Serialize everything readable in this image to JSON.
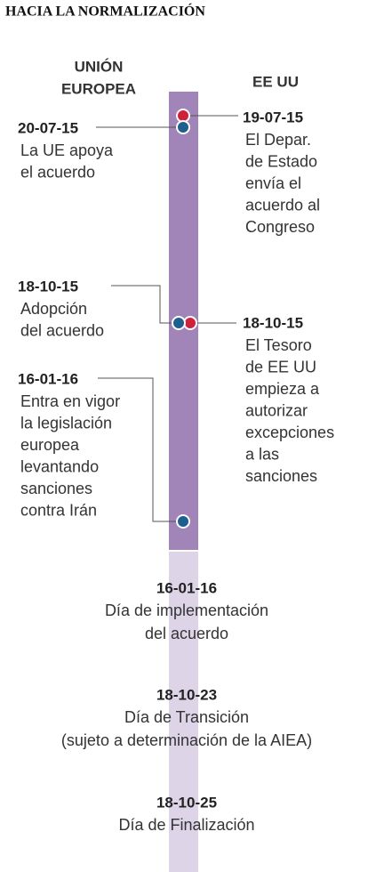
{
  "title": "HACIA LA NORMALIZACIÓN",
  "headers": {
    "eu": [
      "UNIÓN",
      "EUROPEA"
    ],
    "us": "EE UU"
  },
  "eu_events": [
    {
      "date": "20-07-15",
      "lines": [
        "La UE apoya",
        "el acuerdo"
      ]
    },
    {
      "date": "18-10-15",
      "lines": [
        "Adopción",
        "del acuerdo"
      ]
    },
    {
      "date": "16-01-16",
      "lines": [
        "Entra en vigor",
        "la legislación",
        "europea",
        "levantando",
        "sanciones",
        "contra Irán"
      ]
    }
  ],
  "us_events": [
    {
      "date": "19-07-15",
      "lines": [
        "El Depar.",
        "de Estado",
        "envía el",
        "acuerdo al",
        "Congreso"
      ]
    },
    {
      "date": "18-10-15",
      "lines": [
        "El Tesoro",
        "de EE UU",
        "empieza a",
        "autorizar",
        "excepciones",
        "a las",
        "sanciones"
      ]
    }
  ],
  "milestones": [
    {
      "date": "16-01-16",
      "lines": [
        "Día de implementación",
        "del acuerdo"
      ]
    },
    {
      "date": "18-10-23",
      "lines": [
        "Día de Transición",
        "(sujeto a determinación de la AIEA)"
      ]
    },
    {
      "date": "18-10-25",
      "lines": [
        "Día de Finalización"
      ]
    }
  ]
}
